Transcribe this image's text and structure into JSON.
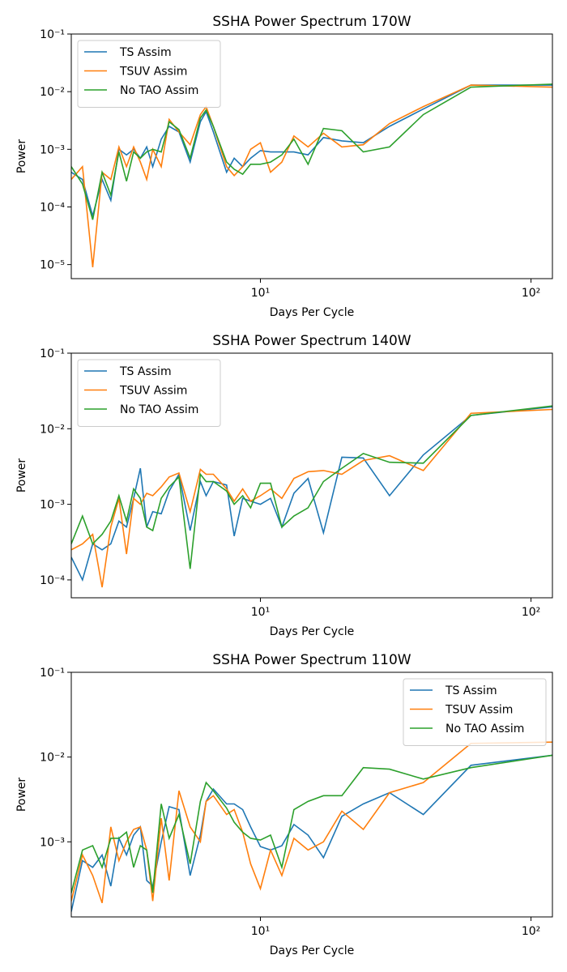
{
  "chart_data": [
    {
      "type": "line",
      "title": "SSHA Power Spectrum 170W",
      "xlabel": "Days Per Cycle",
      "ylabel": "Power",
      "xscale": "log",
      "yscale": "log",
      "legend": "upper left",
      "xlim": [
        2,
        120
      ],
      "ylim": [
        5.7e-06,
        0.1
      ],
      "xticks": [
        {
          "value": 10,
          "label": "10¹"
        },
        {
          "value": 100,
          "label": "10²"
        }
      ],
      "yticks": [
        {
          "value": 1e-05,
          "label": "10⁻⁵"
        },
        {
          "value": 0.0001,
          "label": "10⁻⁴"
        },
        {
          "value": 0.001,
          "label": "10⁻³"
        },
        {
          "value": 0.01,
          "label": "10⁻²"
        },
        {
          "value": 0.1,
          "label": "10⁻¹"
        }
      ],
      "x": [
        2.0,
        2.2,
        2.4,
        2.6,
        2.8,
        3.0,
        3.2,
        3.4,
        3.6,
        3.8,
        4.0,
        4.3,
        4.6,
        5.0,
        5.5,
        6.0,
        6.3,
        6.7,
        7.5,
        8.0,
        8.6,
        9.2,
        10.0,
        10.9,
        12.0,
        13.3,
        15.0,
        17.1,
        20.0,
        24.0,
        30.0,
        40.0,
        60.0,
        120.0
      ],
      "series": [
        {
          "name": "TS Assim",
          "color": "#1f77b4",
          "values": [
            0.0004,
            0.0003,
            7e-05,
            0.0003,
            0.00013,
            0.001,
            0.0008,
            0.001,
            0.0007,
            0.0011,
            0.0005,
            0.0015,
            0.0025,
            0.002,
            0.0006,
            0.003,
            0.0045,
            0.002,
            0.0004,
            0.0007,
            0.0005,
            0.0007,
            0.00095,
            0.0009,
            0.0009,
            0.0009,
            0.0008,
            0.0016,
            0.0014,
            0.0013,
            0.0025,
            0.005,
            0.013,
            0.013
          ]
        },
        {
          "name": "TSUV Assim",
          "color": "#ff7f0e",
          "values": [
            0.0003,
            0.0005,
            9e-06,
            0.0004,
            0.0003,
            0.0011,
            0.0005,
            0.0011,
            0.0006,
            0.0003,
            0.001,
            0.0005,
            0.0033,
            0.002,
            0.0012,
            0.004,
            0.0055,
            0.0025,
            0.0005,
            0.00035,
            0.0005,
            0.001,
            0.0013,
            0.0004,
            0.0006,
            0.0017,
            0.0011,
            0.0019,
            0.0011,
            0.0012,
            0.0028,
            0.0055,
            0.013,
            0.012
          ]
        },
        {
          "name": "No TAO Assim",
          "color": "#2ca02c",
          "values": [
            0.0005,
            0.00025,
            6e-05,
            0.0004,
            0.00016,
            0.0009,
            0.00028,
            0.0009,
            0.0007,
            0.0009,
            0.001,
            0.0009,
            0.003,
            0.0022,
            0.0007,
            0.0035,
            0.0048,
            0.0025,
            0.0006,
            0.00045,
            0.00037,
            0.00055,
            0.00055,
            0.0006,
            0.0008,
            0.0015,
            0.00055,
            0.0023,
            0.0021,
            0.0009,
            0.0011,
            0.004,
            0.012,
            0.0135
          ]
        }
      ]
    },
    {
      "type": "line",
      "title": "SSHA Power Spectrum 140W",
      "xlabel": "Days Per Cycle",
      "ylabel": "Power",
      "xscale": "log",
      "yscale": "log",
      "legend": "upper left",
      "xlim": [
        2,
        120
      ],
      "ylim": [
        5.8e-05,
        0.1
      ],
      "xticks": [
        {
          "value": 10,
          "label": "10¹"
        },
        {
          "value": 100,
          "label": "10²"
        }
      ],
      "yticks": [
        {
          "value": 0.0001,
          "label": "10⁻⁴"
        },
        {
          "value": 0.001,
          "label": "10⁻³"
        },
        {
          "value": 0.01,
          "label": "10⁻²"
        },
        {
          "value": 0.1,
          "label": "10⁻¹"
        }
      ],
      "x": [
        2.0,
        2.2,
        2.4,
        2.6,
        2.8,
        3.0,
        3.2,
        3.4,
        3.6,
        3.8,
        4.0,
        4.3,
        4.6,
        5.0,
        5.5,
        6.0,
        6.3,
        6.7,
        7.5,
        8.0,
        8.6,
        9.2,
        10.0,
        10.9,
        12.0,
        13.3,
        15.0,
        17.1,
        20.0,
        24.0,
        30.0,
        40.0,
        60.0,
        120.0
      ],
      "series": [
        {
          "name": "TS Assim",
          "color": "#1f77b4",
          "values": [
            0.0002,
            0.0001,
            0.0003,
            0.00025,
            0.0003,
            0.0006,
            0.0005,
            0.0012,
            0.003,
            0.0005,
            0.0008,
            0.00075,
            0.0015,
            0.0025,
            0.00045,
            0.002,
            0.0013,
            0.002,
            0.0018,
            0.00038,
            0.0012,
            0.0011,
            0.001,
            0.0012,
            0.0005,
            0.0014,
            0.0022,
            0.00042,
            0.0042,
            0.0041,
            0.0013,
            0.0045,
            0.015,
            0.0195
          ]
        },
        {
          "name": "TSUV Assim",
          "color": "#ff7f0e",
          "values": [
            0.00025,
            0.0003,
            0.0004,
            8e-05,
            0.0005,
            0.0012,
            0.00022,
            0.0012,
            0.001,
            0.0014,
            0.0013,
            0.0017,
            0.0023,
            0.0026,
            0.0008,
            0.0029,
            0.0025,
            0.0025,
            0.0016,
            0.0011,
            0.0016,
            0.0011,
            0.0013,
            0.0016,
            0.0012,
            0.0022,
            0.0027,
            0.0028,
            0.0025,
            0.0038,
            0.0044,
            0.0028,
            0.016,
            0.018
          ]
        },
        {
          "name": "No TAO Assim",
          "color": "#2ca02c",
          "values": [
            0.0003,
            0.0007,
            0.0003,
            0.0004,
            0.0006,
            0.0013,
            0.0006,
            0.0016,
            0.0012,
            0.0005,
            0.00045,
            0.0012,
            0.0017,
            0.0023,
            0.00014,
            0.0025,
            0.002,
            0.002,
            0.0015,
            0.001,
            0.0013,
            0.0009,
            0.0019,
            0.0019,
            0.0005,
            0.0007,
            0.0009,
            0.002,
            0.003,
            0.0047,
            0.0036,
            0.0035,
            0.015,
            0.02
          ]
        }
      ]
    },
    {
      "type": "line",
      "title": "SSHA Power Spectrum 110W",
      "xlabel": "Days Per Cycle",
      "ylabel": "Power",
      "xscale": "log",
      "yscale": "log",
      "legend": "upper right",
      "xlim": [
        2,
        120
      ],
      "ylim": [
        0.00013,
        0.1
      ],
      "xticks": [
        {
          "value": 10,
          "label": "10¹"
        },
        {
          "value": 100,
          "label": "10²"
        }
      ],
      "yticks": [
        {
          "value": 0.001,
          "label": "10⁻³"
        },
        {
          "value": 0.01,
          "label": "10⁻²"
        },
        {
          "value": 0.1,
          "label": "10⁻¹"
        }
      ],
      "x": [
        2.0,
        2.2,
        2.4,
        2.6,
        2.8,
        3.0,
        3.2,
        3.4,
        3.6,
        3.8,
        4.0,
        4.3,
        4.6,
        5.0,
        5.5,
        6.0,
        6.3,
        6.7,
        7.5,
        8.0,
        8.6,
        9.2,
        10.0,
        10.9,
        12.0,
        13.3,
        15.0,
        17.1,
        20.0,
        24.0,
        30.0,
        40.0,
        60.0,
        120.0
      ],
      "series": [
        {
          "name": "TS Assim",
          "color": "#1f77b4",
          "values": [
            0.00015,
            0.0006,
            0.0005,
            0.0007,
            0.0003,
            0.0011,
            0.0007,
            0.0012,
            0.0015,
            0.00035,
            0.0003,
            0.001,
            0.0026,
            0.0024,
            0.0004,
            0.0012,
            0.003,
            0.0042,
            0.0028,
            0.0028,
            0.0024,
            0.0015,
            0.00088,
            0.0008,
            0.0009,
            0.0016,
            0.0012,
            0.00065,
            0.002,
            0.0028,
            0.0038,
            0.0021,
            0.008,
            0.0105
          ]
        },
        {
          "name": "TSUV Assim",
          "color": "#ff7f0e",
          "values": [
            0.0002,
            0.0007,
            0.0004,
            0.00019,
            0.0015,
            0.0006,
            0.001,
            0.0014,
            0.0015,
            0.0008,
            0.0002,
            0.0019,
            0.00035,
            0.004,
            0.0015,
            0.001,
            0.003,
            0.0035,
            0.0021,
            0.0024,
            0.0013,
            0.00055,
            0.00028,
            0.0008,
            0.0004,
            0.0011,
            0.0008,
            0.001,
            0.0023,
            0.0014,
            0.0038,
            0.005,
            0.0145,
            0.015
          ]
        },
        {
          "name": "No TAO Assim",
          "color": "#2ca02c",
          "values": [
            0.00025,
            0.0008,
            0.0009,
            0.0005,
            0.0011,
            0.0011,
            0.0013,
            0.0005,
            0.0009,
            0.0008,
            0.00025,
            0.0028,
            0.0011,
            0.0021,
            0.00055,
            0.003,
            0.005,
            0.004,
            0.0025,
            0.0017,
            0.0013,
            0.0011,
            0.00105,
            0.0012,
            0.0005,
            0.0024,
            0.003,
            0.0035,
            0.0035,
            0.0075,
            0.0072,
            0.0055,
            0.0075,
            0.0105
          ]
        }
      ]
    }
  ]
}
